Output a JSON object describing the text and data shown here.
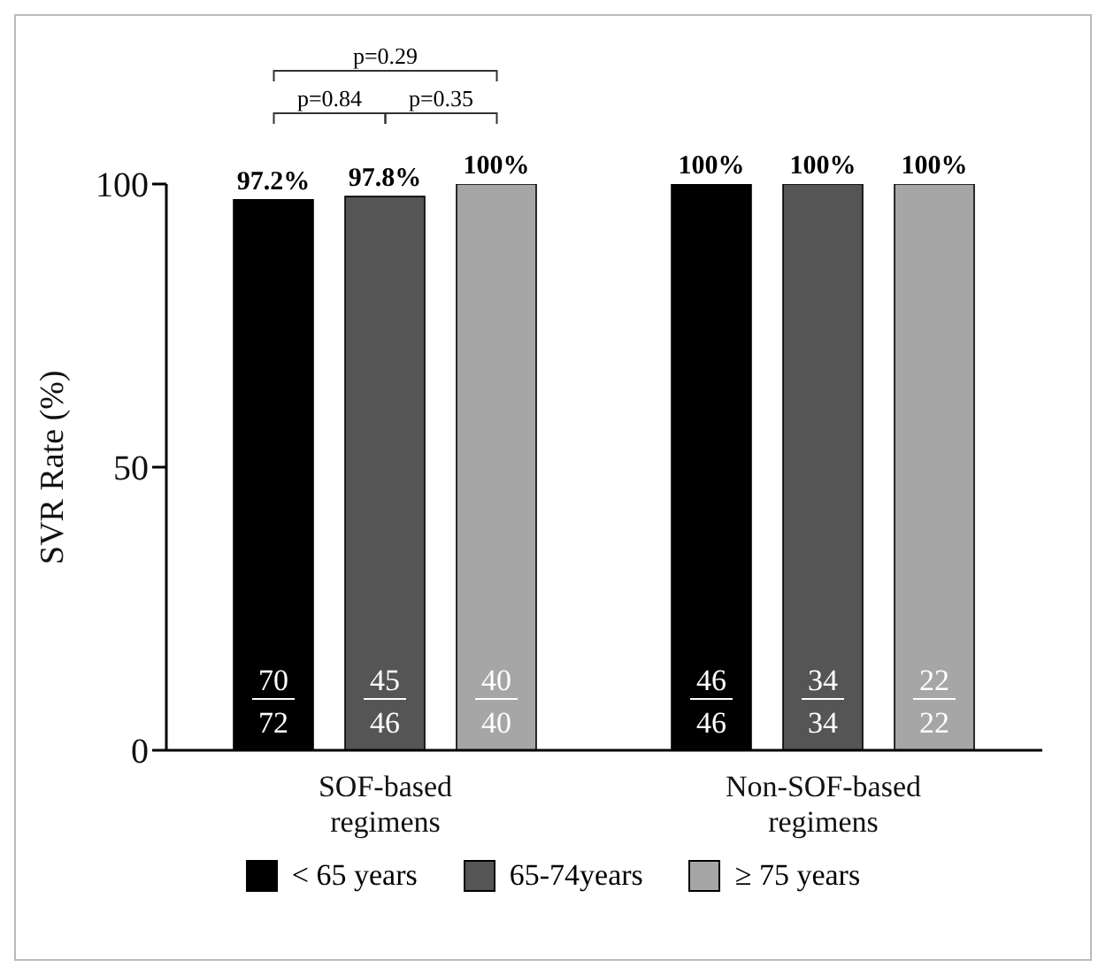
{
  "chart_data": {
    "type": "bar",
    "ylabel": "SVR Rate (%)",
    "categories": [
      "SOF-based regimens",
      "Non-SOF-based regimens"
    ],
    "series": [
      {
        "name": "< 65 years",
        "color": "#000000",
        "values": [
          97.2,
          100
        ],
        "value_labels": [
          "97.2%",
          "100%"
        ]
      },
      {
        "name": "65-74years",
        "color": "#555555",
        "values": [
          97.8,
          100
        ],
        "value_labels": [
          "97.8%",
          "100%"
        ]
      },
      {
        "name": "≥ 75 years",
        "color": "#a6a6a6",
        "values": [
          100,
          100
        ],
        "value_labels": [
          "100%",
          "100%"
        ]
      }
    ],
    "ylim": [
      0,
      100
    ],
    "yticks": [
      0,
      50,
      100
    ],
    "grid": false,
    "legend": "bottom",
    "annotations": [
      "p=0.84",
      "p=0.35",
      "p=0.29",
      "70",
      "72",
      "45",
      "46",
      "40",
      "40",
      "46",
      "46",
      "34",
      "34",
      "22",
      "22"
    ]
  }
}
